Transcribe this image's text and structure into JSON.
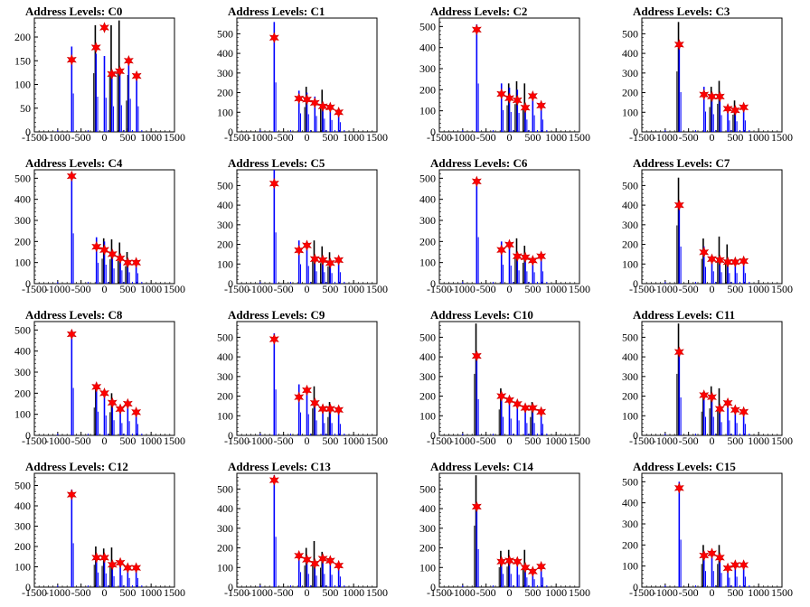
{
  "chart_data": [
    {
      "type": "histogram",
      "title": "Address Levels: C0",
      "xlim": [
        -1500,
        1500
      ],
      "ylim": [
        0,
        240
      ],
      "yticks": [
        0,
        50,
        100,
        150,
        200
      ],
      "xticks": [
        -1500,
        -1000,
        -500,
        0,
        500,
        1000,
        1500
      ],
      "peaks": [
        {
          "x": -700,
          "y": 152
        },
        {
          "x": -180,
          "y": 178
        },
        {
          "x": 0,
          "y": 220
        },
        {
          "x": 160,
          "y": 122
        },
        {
          "x": 330,
          "y": 128
        },
        {
          "x": 520,
          "y": 150
        },
        {
          "x": 690,
          "y": 118
        }
      ],
      "blue_heights": [
        180,
        165,
        160,
        120,
        125,
        155,
        120
      ],
      "black_heights": [
        0,
        225,
        0,
        225,
        235,
        120,
        0
      ]
    },
    {
      "type": "histogram",
      "title": "Address Levels: C1",
      "xlim": [
        -1500,
        1500
      ],
      "ylim": [
        0,
        580
      ],
      "yticks": [
        0,
        100,
        200,
        300,
        400,
        500
      ],
      "xticks": [
        -1500,
        -1000,
        -500,
        0,
        500,
        1000,
        1500
      ],
      "peaks": [
        {
          "x": -700,
          "y": 480
        },
        {
          "x": -170,
          "y": 170
        },
        {
          "x": 0,
          "y": 165
        },
        {
          "x": 170,
          "y": 148
        },
        {
          "x": 340,
          "y": 130
        },
        {
          "x": 500,
          "y": 125
        },
        {
          "x": 680,
          "y": 100
        }
      ],
      "blue_heights": [
        560,
        210,
        200,
        180,
        150,
        135,
        110
      ],
      "black_heights": [
        0,
        0,
        230,
        0,
        215,
        0,
        0
      ]
    },
    {
      "type": "histogram",
      "title": "Address Levels: C2",
      "xlim": [
        -1500,
        1500
      ],
      "ylim": [
        0,
        540
      ],
      "yticks": [
        0,
        100,
        200,
        300,
        400,
        500
      ],
      "xticks": [
        -1500,
        -1000,
        -500,
        0,
        500,
        1000,
        1500
      ],
      "peaks": [
        {
          "x": -700,
          "y": 485
        },
        {
          "x": -170,
          "y": 180
        },
        {
          "x": 0,
          "y": 160
        },
        {
          "x": 170,
          "y": 150
        },
        {
          "x": 340,
          "y": 115
        },
        {
          "x": 500,
          "y": 170
        },
        {
          "x": 680,
          "y": 125
        }
      ],
      "blue_heights": [
        510,
        230,
        210,
        200,
        130,
        175,
        130
      ],
      "black_heights": [
        0,
        0,
        230,
        240,
        230,
        0,
        0
      ]
    },
    {
      "type": "histogram",
      "title": "Address Levels: C3",
      "xlim": [
        -1500,
        1500
      ],
      "ylim": [
        0,
        580
      ],
      "yticks": [
        0,
        100,
        200,
        300,
        400,
        500
      ],
      "xticks": [
        -1500,
        -1000,
        -500,
        0,
        500,
        1000,
        1500
      ],
      "peaks": [
        {
          "x": -700,
          "y": 445
        },
        {
          "x": -170,
          "y": 190
        },
        {
          "x": 0,
          "y": 180
        },
        {
          "x": 170,
          "y": 180
        },
        {
          "x": 340,
          "y": 118
        },
        {
          "x": 500,
          "y": 110
        },
        {
          "x": 680,
          "y": 125
        }
      ],
      "blue_heights": [
        450,
        230,
        200,
        190,
        130,
        120,
        130
      ],
      "black_heights": [
        560,
        0,
        230,
        260,
        0,
        160,
        0
      ]
    },
    {
      "type": "histogram",
      "title": "Address Levels: C4",
      "xlim": [
        -1500,
        1500
      ],
      "ylim": [
        0,
        540
      ],
      "yticks": [
        0,
        100,
        200,
        300,
        400,
        500
      ],
      "xticks": [
        -1500,
        -1000,
        -500,
        0,
        500,
        1000,
        1500
      ],
      "peaks": [
        {
          "x": -700,
          "y": 510
        },
        {
          "x": -170,
          "y": 175
        },
        {
          "x": 0,
          "y": 160
        },
        {
          "x": 170,
          "y": 140
        },
        {
          "x": 340,
          "y": 120
        },
        {
          "x": 500,
          "y": 100
        },
        {
          "x": 680,
          "y": 100
        }
      ],
      "blue_heights": [
        530,
        220,
        200,
        160,
        140,
        120,
        110
      ],
      "black_heights": [
        0,
        0,
        215,
        210,
        195,
        150,
        0
      ]
    },
    {
      "type": "histogram",
      "title": "Address Levels: C5",
      "xlim": [
        -1500,
        1500
      ],
      "ylim": [
        0,
        580
      ],
      "yticks": [
        0,
        100,
        200,
        300,
        400,
        500
      ],
      "xticks": [
        -1500,
        -1000,
        -500,
        0,
        500,
        1000,
        1500
      ],
      "peaks": [
        {
          "x": -700,
          "y": 510
        },
        {
          "x": -170,
          "y": 170
        },
        {
          "x": 0,
          "y": 195
        },
        {
          "x": 170,
          "y": 125
        },
        {
          "x": 340,
          "y": 120
        },
        {
          "x": 500,
          "y": 105
        },
        {
          "x": 680,
          "y": 120
        }
      ],
      "blue_heights": [
        580,
        220,
        200,
        140,
        130,
        120,
        130
      ],
      "black_heights": [
        0,
        0,
        0,
        220,
        190,
        160,
        0
      ]
    },
    {
      "type": "histogram",
      "title": "Address Levels: C6",
      "xlim": [
        -1500,
        1500
      ],
      "ylim": [
        0,
        540
      ],
      "yticks": [
        0,
        100,
        200,
        300,
        400,
        500
      ],
      "xticks": [
        -1500,
        -1000,
        -500,
        0,
        500,
        1000,
        1500
      ],
      "peaks": [
        {
          "x": -700,
          "y": 485
        },
        {
          "x": -170,
          "y": 160
        },
        {
          "x": 0,
          "y": 185
        },
        {
          "x": 170,
          "y": 130
        },
        {
          "x": 340,
          "y": 125
        },
        {
          "x": 500,
          "y": 110
        },
        {
          "x": 680,
          "y": 130
        }
      ],
      "blue_heights": [
        490,
        200,
        190,
        140,
        130,
        120,
        130
      ],
      "black_heights": [
        0,
        0,
        0,
        215,
        180,
        0,
        0
      ]
    },
    {
      "type": "histogram",
      "title": "Address Levels: C7",
      "xlim": [
        -1500,
        1500
      ],
      "ylim": [
        0,
        580
      ],
      "yticks": [
        0,
        100,
        200,
        300,
        400,
        500
      ],
      "xticks": [
        -1500,
        -1000,
        -500,
        0,
        500,
        1000,
        1500
      ],
      "peaks": [
        {
          "x": -700,
          "y": 400
        },
        {
          "x": -170,
          "y": 160
        },
        {
          "x": 0,
          "y": 125
        },
        {
          "x": 170,
          "y": 120
        },
        {
          "x": 340,
          "y": 110
        },
        {
          "x": 500,
          "y": 110
        },
        {
          "x": 680,
          "y": 115
        }
      ],
      "blue_heights": [
        420,
        190,
        140,
        130,
        120,
        120,
        120
      ],
      "black_heights": [
        540,
        230,
        0,
        240,
        200,
        0,
        0
      ]
    },
    {
      "type": "histogram",
      "title": "Address Levels: C8",
      "xlim": [
        -1500,
        1500
      ],
      "ylim": [
        0,
        540
      ],
      "yticks": [
        0,
        100,
        200,
        300,
        400,
        500
      ],
      "xticks": [
        -1500,
        -1000,
        -500,
        0,
        500,
        1000,
        1500
      ],
      "peaks": [
        {
          "x": -700,
          "y": 480
        },
        {
          "x": -170,
          "y": 230
        },
        {
          "x": 0,
          "y": 200
        },
        {
          "x": 170,
          "y": 155
        },
        {
          "x": 340,
          "y": 125
        },
        {
          "x": 500,
          "y": 150
        },
        {
          "x": 680,
          "y": 110
        }
      ],
      "blue_heights": [
        500,
        250,
        210,
        160,
        130,
        150,
        120
      ],
      "black_heights": [
        0,
        240,
        0,
        200,
        0,
        0,
        0
      ]
    },
    {
      "type": "histogram",
      "title": "Address Levels: C9",
      "xlim": [
        -1500,
        1500
      ],
      "ylim": [
        0,
        580
      ],
      "yticks": [
        0,
        100,
        200,
        300,
        400,
        500
      ],
      "xticks": [
        -1500,
        -1000,
        -500,
        0,
        500,
        1000,
        1500
      ],
      "peaks": [
        {
          "x": -700,
          "y": 490
        },
        {
          "x": -170,
          "y": 195
        },
        {
          "x": 0,
          "y": 230
        },
        {
          "x": 170,
          "y": 165
        },
        {
          "x": 340,
          "y": 135
        },
        {
          "x": 500,
          "y": 135
        },
        {
          "x": 680,
          "y": 130
        }
      ],
      "blue_heights": [
        520,
        260,
        240,
        170,
        140,
        140,
        130
      ],
      "black_heights": [
        0,
        0,
        0,
        250,
        0,
        170,
        0
      ]
    },
    {
      "type": "histogram",
      "title": "Address Levels: C10",
      "xlim": [
        -1500,
        1500
      ],
      "ylim": [
        0,
        580
      ],
      "yticks": [
        0,
        100,
        200,
        300,
        400,
        500
      ],
      "xticks": [
        -1500,
        -1000,
        -500,
        0,
        500,
        1000,
        1500
      ],
      "peaks": [
        {
          "x": -700,
          "y": 405
        },
        {
          "x": -170,
          "y": 200
        },
        {
          "x": 0,
          "y": 180
        },
        {
          "x": 170,
          "y": 160
        },
        {
          "x": 340,
          "y": 140
        },
        {
          "x": 500,
          "y": 140
        },
        {
          "x": 680,
          "y": 120
        }
      ],
      "blue_heights": [
        410,
        210,
        190,
        170,
        140,
        140,
        130
      ],
      "black_heights": [
        570,
        240,
        0,
        0,
        0,
        170,
        0
      ]
    },
    {
      "type": "histogram",
      "title": "Address Levels: C11",
      "xlim": [
        -1500,
        1500
      ],
      "ylim": [
        0,
        580
      ],
      "yticks": [
        0,
        100,
        200,
        300,
        400,
        500
      ],
      "xticks": [
        -1500,
        -1000,
        -500,
        0,
        500,
        1000,
        1500
      ],
      "peaks": [
        {
          "x": -700,
          "y": 425
        },
        {
          "x": -170,
          "y": 205
        },
        {
          "x": 0,
          "y": 195
        },
        {
          "x": 170,
          "y": 135
        },
        {
          "x": 340,
          "y": 165
        },
        {
          "x": 500,
          "y": 130
        },
        {
          "x": 680,
          "y": 120
        }
      ],
      "blue_heights": [
        430,
        210,
        210,
        150,
        170,
        140,
        130
      ],
      "black_heights": [
        570,
        220,
        250,
        240,
        0,
        0,
        0
      ]
    },
    {
      "type": "histogram",
      "title": "Address Levels: C12",
      "xlim": [
        -1500,
        1500
      ],
      "ylim": [
        0,
        560
      ],
      "yticks": [
        0,
        100,
        200,
        300,
        400,
        500
      ],
      "xticks": [
        -1500,
        -1000,
        -500,
        0,
        500,
        1000,
        1500
      ],
      "peaks": [
        {
          "x": -700,
          "y": 455
        },
        {
          "x": -170,
          "y": 145
        },
        {
          "x": 0,
          "y": 145
        },
        {
          "x": 170,
          "y": 110
        },
        {
          "x": 340,
          "y": 120
        },
        {
          "x": 500,
          "y": 95
        },
        {
          "x": 680,
          "y": 95
        }
      ],
      "blue_heights": [
        480,
        160,
        150,
        120,
        130,
        100,
        100
      ],
      "black_heights": [
        0,
        200,
        190,
        195,
        0,
        0,
        0
      ]
    },
    {
      "type": "histogram",
      "title": "Address Levels: C13",
      "xlim": [
        -1500,
        1500
      ],
      "ylim": [
        0,
        580
      ],
      "yticks": [
        0,
        100,
        200,
        300,
        400,
        500
      ],
      "xticks": [
        -1500,
        -1000,
        -500,
        0,
        500,
        1000,
        1500
      ],
      "peaks": [
        {
          "x": -700,
          "y": 545
        },
        {
          "x": -170,
          "y": 160
        },
        {
          "x": 0,
          "y": 140
        },
        {
          "x": 170,
          "y": 120
        },
        {
          "x": 340,
          "y": 145
        },
        {
          "x": 500,
          "y": 135
        },
        {
          "x": 680,
          "y": 110
        }
      ],
      "blue_heights": [
        570,
        170,
        150,
        130,
        150,
        140,
        120
      ],
      "black_heights": [
        0,
        0,
        200,
        235,
        180,
        0,
        0
      ]
    },
    {
      "type": "histogram",
      "title": "Address Levels: C14",
      "xlim": [
        -1500,
        1500
      ],
      "ylim": [
        0,
        580
      ],
      "yticks": [
        0,
        100,
        200,
        300,
        400,
        500
      ],
      "xticks": [
        -1500,
        -1000,
        -500,
        0,
        500,
        1000,
        1500
      ],
      "peaks": [
        {
          "x": -700,
          "y": 410
        },
        {
          "x": -170,
          "y": 130
        },
        {
          "x": 0,
          "y": 135
        },
        {
          "x": 170,
          "y": 130
        },
        {
          "x": 340,
          "y": 100
        },
        {
          "x": 500,
          "y": 80
        },
        {
          "x": 680,
          "y": 105
        }
      ],
      "blue_heights": [
        430,
        150,
        150,
        140,
        110,
        90,
        110
      ],
      "black_heights": [
        570,
        185,
        190,
        0,
        190,
        0,
        0
      ]
    },
    {
      "type": "histogram",
      "title": "Address Levels: C15",
      "xlim": [
        -1500,
        1500
      ],
      "ylim": [
        0,
        540
      ],
      "yticks": [
        0,
        100,
        200,
        300,
        400,
        500
      ],
      "xticks": [
        -1500,
        -1000,
        -500,
        0,
        500,
        1000,
        1500
      ],
      "peaks": [
        {
          "x": -700,
          "y": 470
        },
        {
          "x": -170,
          "y": 150
        },
        {
          "x": 0,
          "y": 160
        },
        {
          "x": 170,
          "y": 140
        },
        {
          "x": 340,
          "y": 90
        },
        {
          "x": 500,
          "y": 105
        },
        {
          "x": 680,
          "y": 105
        }
      ],
      "blue_heights": [
        500,
        170,
        170,
        150,
        100,
        110,
        110
      ],
      "black_heights": [
        0,
        200,
        0,
        200,
        0,
        0,
        0
      ]
    }
  ],
  "colors": {
    "blue": "#0000ff",
    "black": "#000000",
    "marker_fill": "#ff0000",
    "marker_stroke": "#cc0000"
  }
}
